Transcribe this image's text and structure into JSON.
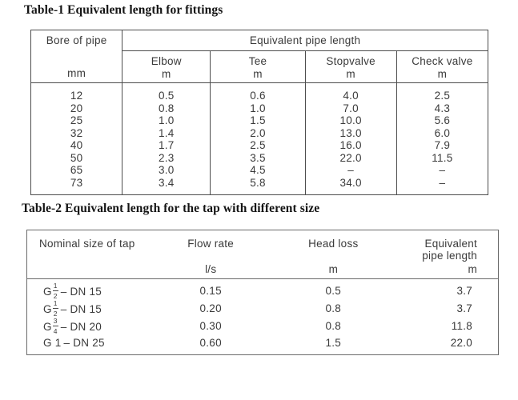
{
  "colors": {
    "background": "#ffffff",
    "text": "#3a3a3a",
    "title_text": "#141414",
    "table1_border": "#4d4d4d",
    "table2_border": "#6a6a6a"
  },
  "table1": {
    "title": "Table-1 Equivalent length for fittings",
    "header": {
      "col1": "Bore of pipe",
      "col1_unit": "mm",
      "group": "Equivalent pipe length",
      "columns": [
        {
          "label": "Elbow",
          "unit": "m"
        },
        {
          "label": "Tee",
          "unit": "m"
        },
        {
          "label": "Stopvalve",
          "unit": "m"
        },
        {
          "label": "Check valve",
          "unit": "m"
        }
      ]
    },
    "rows": [
      {
        "bore": "12",
        "elbow": "0.5",
        "tee": "0.6",
        "stopvalve": "4.0",
        "check_valve": "2.5"
      },
      {
        "bore": "20",
        "elbow": "0.8",
        "tee": "1.0",
        "stopvalve": "7.0",
        "check_valve": "4.3"
      },
      {
        "bore": "25",
        "elbow": "1.0",
        "tee": "1.5",
        "stopvalve": "10.0",
        "check_valve": "5.6"
      },
      {
        "bore": "32",
        "elbow": "1.4",
        "tee": "2.0",
        "stopvalve": "13.0",
        "check_valve": "6.0"
      },
      {
        "bore": "40",
        "elbow": "1.7",
        "tee": "2.5",
        "stopvalve": "16.0",
        "check_valve": "7.9"
      },
      {
        "bore": "50",
        "elbow": "2.3",
        "tee": "3.5",
        "stopvalve": "22.0",
        "check_valve": "11.5"
      },
      {
        "bore": "65",
        "elbow": "3.0",
        "tee": "4.5",
        "stopvalve": "–",
        "check_valve": "–"
      },
      {
        "bore": "73",
        "elbow": "3.4",
        "tee": "5.8",
        "stopvalve": "34.0",
        "check_valve": "–"
      }
    ]
  },
  "table2": {
    "title": "Table-2 Equivalent length for the tap with different size",
    "columns": [
      {
        "label": "Nominal size of tap",
        "unit": ""
      },
      {
        "label": "Flow rate",
        "unit": "l/s"
      },
      {
        "label": "Head loss",
        "unit": "m"
      },
      {
        "label": "Equivalent pipe length",
        "unit": "m"
      }
    ],
    "rows": [
      {
        "tap_prefix": "G",
        "tap_frac_num": "1",
        "tap_frac_den": "2",
        "tap_suffix": "– DN 15",
        "flow_rate": "0.15",
        "head_loss": "0.5",
        "equivalent_length": "3.7"
      },
      {
        "tap_prefix": "G",
        "tap_frac_num": "1",
        "tap_frac_den": "2",
        "tap_suffix": "– DN 15",
        "flow_rate": "0.20",
        "head_loss": "0.8",
        "equivalent_length": "3.7"
      },
      {
        "tap_prefix": "G",
        "tap_frac_num": "3",
        "tap_frac_den": "4",
        "tap_suffix": "– DN 20",
        "flow_rate": "0.30",
        "head_loss": "0.8",
        "equivalent_length": "11.8"
      },
      {
        "tap_prefix": "G 1",
        "tap_frac_num": "",
        "tap_frac_den": "",
        "tap_suffix": "– DN 25",
        "flow_rate": "0.60",
        "head_loss": "1.5",
        "equivalent_length": "22.0"
      }
    ]
  }
}
